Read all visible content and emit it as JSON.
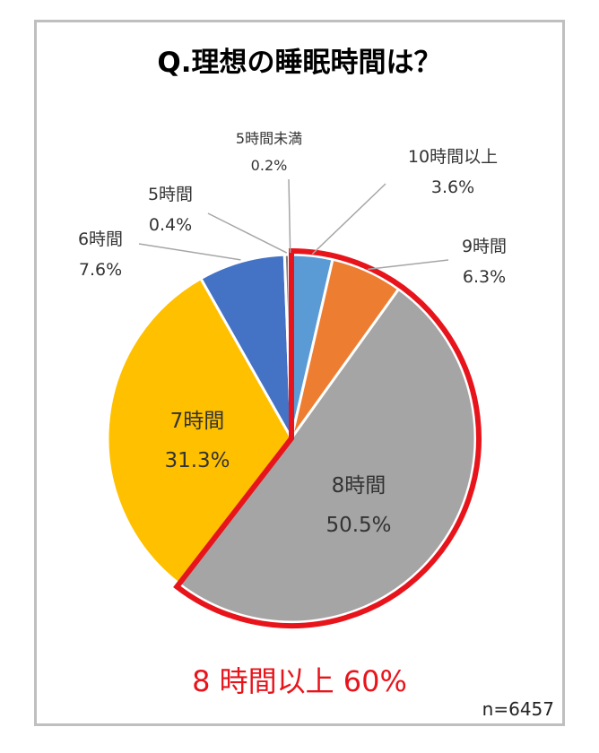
{
  "chart_data": {
    "type": "pie",
    "title": "Q.理想の睡眠時間は？",
    "categories": [
      "10時間以上",
      "9時間",
      "8時間",
      "7時間",
      "6時間",
      "5時間",
      "5時間未満"
    ],
    "values": [
      3.6,
      6.3,
      50.5,
      31.3,
      7.6,
      0.4,
      0.2
    ],
    "value_labels": [
      "3.6%",
      "6.3%",
      "50.5%",
      "31.3%",
      "7.6%",
      "0.4%",
      "0.2%"
    ],
    "colors": [
      "#5b9bd5",
      "#ed7d31",
      "#a5a5a5",
      "#ffc000",
      "#4472c4",
      "#7f7f7f",
      "#264478"
    ],
    "highlight": {
      "categories": [
        "10時間以上",
        "9時間",
        "8時間"
      ],
      "color": "#e8141b",
      "text": "8 時間以上 60%"
    },
    "sample_size": "n=6457"
  }
}
